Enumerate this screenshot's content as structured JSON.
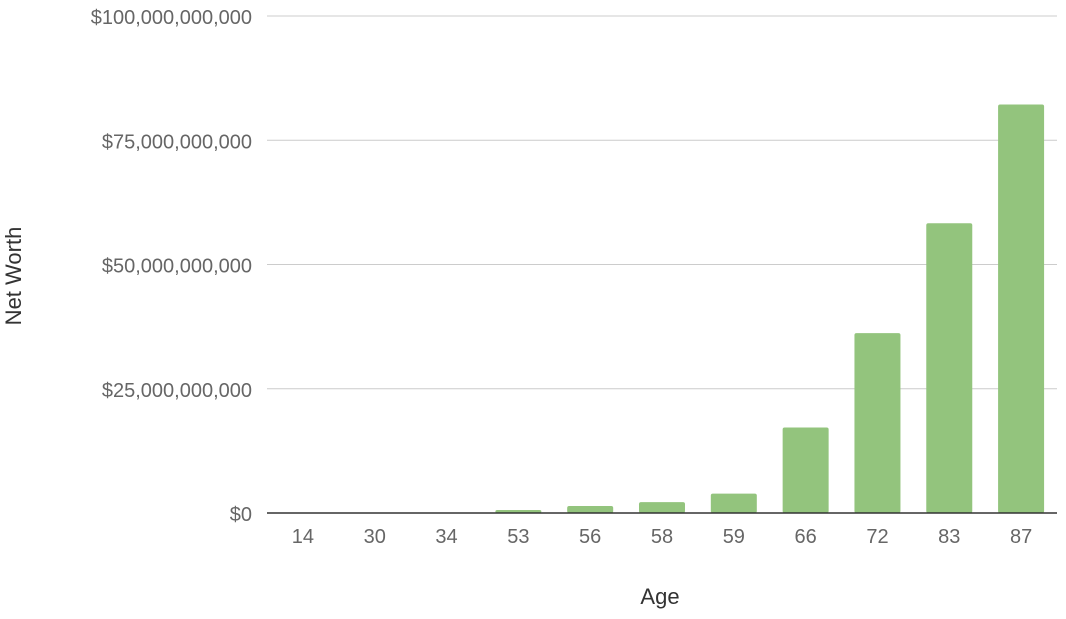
{
  "chart_data": {
    "type": "bar",
    "title": "",
    "xlabel": "Age",
    "ylabel": "Net Worth",
    "categories": [
      "14",
      "30",
      "34",
      "53",
      "56",
      "58",
      "59",
      "66",
      "72",
      "83",
      "87"
    ],
    "series": [
      {
        "values": [
          0,
          0,
          0,
          600000000,
          1400000000,
          2200000000,
          3900000000,
          17200000000,
          36200000000,
          58300000000,
          82200000000
        ]
      }
    ],
    "ylim": [
      0,
      100000000000
    ],
    "yticks": [
      0,
      25000000000,
      50000000000,
      75000000000,
      100000000000
    ],
    "ytick_labels": [
      "$0",
      "$25,000,000,000",
      "$50,000,000,000",
      "$75,000,000,000",
      "$100,000,000,000"
    ],
    "grid": true,
    "legend": "none",
    "colors": {
      "bar": "#93c47d",
      "grid": "#cccccc",
      "axis": "#333333",
      "tick_text": "#666666",
      "label_text": "#333333"
    }
  }
}
